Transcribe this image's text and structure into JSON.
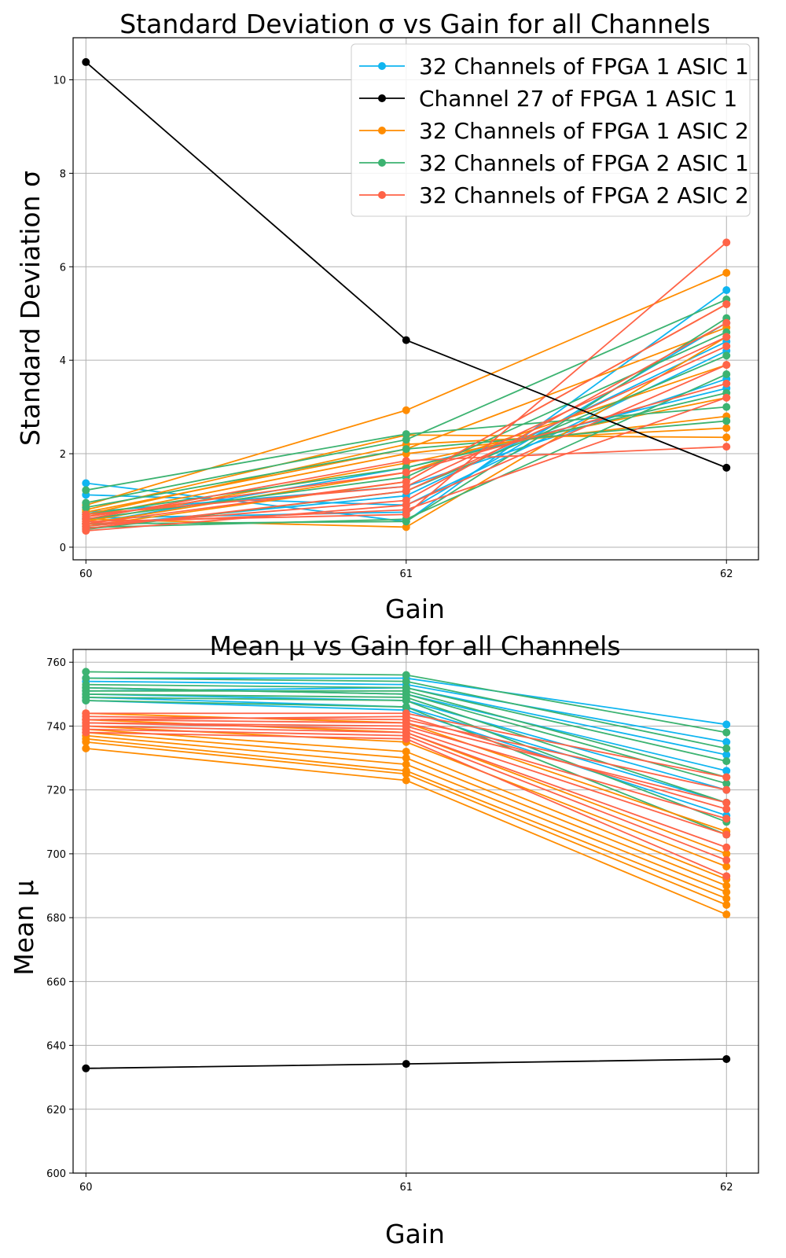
{
  "chart_data": [
    {
      "type": "line",
      "title": "Standard Deviation σ vs Gain for all Channels",
      "xlabel": "Gain",
      "ylabel": "Standard Deviation σ",
      "x": [
        60,
        61,
        62
      ],
      "xticks": [
        60,
        61,
        62
      ],
      "yticks": [
        0,
        2,
        4,
        6,
        8,
        10
      ],
      "ylim": [
        -0.27,
        10.9
      ],
      "grid": true,
      "legend_position": "upper right",
      "legend": [
        {
          "label": "32 Channels of FPGA 1 ASIC 1",
          "color": "#0fb5f0"
        },
        {
          "label": "Channel 27 of FPGA 1 ASIC 1",
          "color": "#000000"
        },
        {
          "label": "32 Channels of FPGA 1 ASIC 2",
          "color": "#ff8c00"
        },
        {
          "label": "32 Channels of FPGA 2 ASIC 1",
          "color": "#3cb371"
        },
        {
          "label": "32 Channels of FPGA 2 ASIC 2",
          "color": "#ff6347"
        }
      ],
      "series": [
        {
          "name": "Channel 27 of FPGA 1 ASIC 1",
          "color": "#000000",
          "values": [
            10.38,
            4.43,
            1.7
          ]
        },
        {
          "color": "#0fb5f0",
          "values": [
            1.37,
            0.55,
            5.5
          ]
        },
        {
          "color": "#0fb5f0",
          "values": [
            1.12,
            0.9,
            4.2
          ]
        },
        {
          "color": "#0fb5f0",
          "values": [
            0.75,
            1.3,
            3.6
          ]
        },
        {
          "color": "#0fb5f0",
          "values": [
            0.62,
            0.75,
            4.8
          ]
        },
        {
          "color": "#0fb5f0",
          "values": [
            0.5,
            1.7,
            3.4
          ]
        },
        {
          "color": "#0fb5f0",
          "values": [
            0.45,
            1.1,
            4.4
          ]
        },
        {
          "color": "#ff8c00",
          "values": [
            0.9,
            2.93,
            5.87
          ]
        },
        {
          "color": "#ff8c00",
          "values": [
            0.8,
            2.4,
            2.35
          ]
        },
        {
          "color": "#ff8c00",
          "values": [
            0.7,
            2.2,
            2.55
          ]
        },
        {
          "color": "#ff8c00",
          "values": [
            0.65,
            2.0,
            2.8
          ]
        },
        {
          "color": "#ff8c00",
          "values": [
            0.55,
            1.8,
            3.2
          ]
        },
        {
          "color": "#ff8c00",
          "values": [
            0.5,
            1.6,
            3.9
          ]
        },
        {
          "color": "#ff8c00",
          "values": [
            0.6,
            0.43,
            4.5
          ]
        },
        {
          "color": "#ff8c00",
          "values": [
            0.45,
            1.4,
            5.2
          ]
        },
        {
          "color": "#ff8c00",
          "values": [
            0.75,
            2.1,
            4.7
          ]
        },
        {
          "color": "#3cb371",
          "values": [
            1.22,
            2.42,
            3.0
          ]
        },
        {
          "color": "#3cb371",
          "values": [
            0.95,
            2.3,
            5.3
          ]
        },
        {
          "color": "#3cb371",
          "values": [
            0.85,
            2.1,
            2.7
          ]
        },
        {
          "color": "#3cb371",
          "values": [
            0.7,
            1.7,
            3.3
          ]
        },
        {
          "color": "#3cb371",
          "values": [
            0.6,
            1.5,
            4.6
          ]
        },
        {
          "color": "#3cb371",
          "values": [
            0.5,
            0.55,
            4.9
          ]
        },
        {
          "color": "#3cb371",
          "values": [
            0.38,
            1.2,
            4.1
          ]
        },
        {
          "color": "#3cb371",
          "values": [
            0.42,
            0.6,
            3.7
          ]
        },
        {
          "color": "#ff6347",
          "values": [
            0.6,
            1.85,
            2.15
          ]
        },
        {
          "color": "#ff6347",
          "values": [
            0.55,
            0.7,
            6.52
          ]
        },
        {
          "color": "#ff6347",
          "values": [
            0.5,
            1.4,
            5.2
          ]
        },
        {
          "color": "#ff6347",
          "values": [
            0.45,
            1.0,
            4.8
          ]
        },
        {
          "color": "#ff6347",
          "values": [
            0.4,
            1.2,
            4.3
          ]
        },
        {
          "color": "#ff6347",
          "values": [
            0.35,
            0.9,
            3.9
          ]
        },
        {
          "color": "#ff6347",
          "values": [
            0.65,
            1.6,
            3.5
          ]
        },
        {
          "color": "#ff6347",
          "values": [
            0.7,
            1.3,
            4.5
          ]
        },
        {
          "color": "#ff6347",
          "values": [
            0.5,
            0.8,
            3.2
          ]
        }
      ]
    },
    {
      "type": "line",
      "title": "Mean μ vs Gain for all Channels",
      "xlabel": "Gain",
      "ylabel": "Mean μ",
      "x": [
        60,
        61,
        62
      ],
      "xticks": [
        60,
        61,
        62
      ],
      "yticks": [
        600,
        620,
        640,
        660,
        680,
        700,
        720,
        740,
        760
      ],
      "ylim": [
        600,
        764
      ],
      "grid": true,
      "series": [
        {
          "name": "Channel 27 of FPGA 1 ASIC 1",
          "color": "#000000",
          "values": [
            632.8,
            634.2,
            635.7
          ]
        },
        {
          "color": "#0fb5f0",
          "values": [
            755,
            755,
            740.5
          ]
        },
        {
          "color": "#0fb5f0",
          "values": [
            754,
            753,
            735
          ]
        },
        {
          "color": "#0fb5f0",
          "values": [
            752,
            750,
            726
          ]
        },
        {
          "color": "#0fb5f0",
          "values": [
            750,
            748,
            720
          ]
        },
        {
          "color": "#0fb5f0",
          "values": [
            749,
            746,
            716
          ]
        },
        {
          "color": "#0fb5f0",
          "values": [
            748,
            745,
            712
          ]
        },
        {
          "color": "#0fb5f0",
          "values": [
            751,
            752,
            731
          ]
        },
        {
          "color": "#3cb371",
          "values": [
            757,
            756,
            738
          ]
        },
        {
          "color": "#3cb371",
          "values": [
            755,
            754,
            733
          ]
        },
        {
          "color": "#3cb371",
          "values": [
            753,
            752,
            729
          ]
        },
        {
          "color": "#3cb371",
          "values": [
            752,
            750,
            722
          ]
        },
        {
          "color": "#3cb371",
          "values": [
            750,
            749,
            716
          ]
        },
        {
          "color": "#3cb371",
          "values": [
            749,
            748,
            710
          ]
        },
        {
          "color": "#3cb371",
          "values": [
            748,
            746,
            706
          ]
        },
        {
          "color": "#3cb371",
          "values": [
            751,
            751,
            724
          ]
        },
        {
          "color": "#ff8c00",
          "values": [
            744,
            741,
            707
          ]
        },
        {
          "color": "#ff8c00",
          "values": [
            742,
            738,
            700
          ]
        },
        {
          "color": "#ff8c00",
          "values": [
            740,
            735,
            696
          ]
        },
        {
          "color": "#ff8c00",
          "values": [
            739,
            732,
            692
          ]
        },
        {
          "color": "#ff8c00",
          "values": [
            738,
            730,
            690
          ]
        },
        {
          "color": "#ff8c00",
          "values": [
            737,
            728,
            688
          ]
        },
        {
          "color": "#ff8c00",
          "values": [
            736,
            726,
            686
          ]
        },
        {
          "color": "#ff8c00",
          "values": [
            735,
            725,
            684
          ]
        },
        {
          "color": "#ff8c00",
          "values": [
            733,
            723,
            681
          ]
        },
        {
          "color": "#ff6347",
          "values": [
            744,
            744,
            724
          ]
        },
        {
          "color": "#ff6347",
          "values": [
            743,
            742,
            720
          ]
        },
        {
          "color": "#ff6347",
          "values": [
            742,
            741,
            716
          ]
        },
        {
          "color": "#ff6347",
          "values": [
            741,
            740,
            711
          ]
        },
        {
          "color": "#ff6347",
          "values": [
            741,
            739,
            706
          ]
        },
        {
          "color": "#ff6347",
          "values": [
            740,
            738,
            702
          ]
        },
        {
          "color": "#ff6347",
          "values": [
            739,
            737,
            698
          ]
        },
        {
          "color": "#ff6347",
          "values": [
            738,
            736,
            693
          ]
        },
        {
          "color": "#ff6347",
          "values": [
            742,
            743,
            714
          ]
        }
      ]
    }
  ]
}
